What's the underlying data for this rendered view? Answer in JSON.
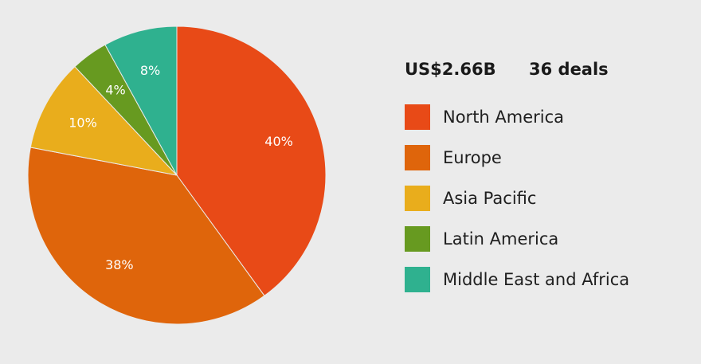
{
  "chart_data": {
    "type": "pie",
    "annotations": [
      "US$2.66B",
      "36 deals"
    ],
    "categories": [
      "North America",
      "Europe",
      "Asia Pacific",
      "Latin America",
      "Middle East and Africa"
    ],
    "values": [
      40,
      38,
      10,
      4,
      8
    ],
    "value_labels": [
      "40%",
      "38%",
      "10%",
      "4%",
      "8%"
    ],
    "colors": [
      "#e84a17",
      "#df650b",
      "#e9ad1c",
      "#679a20",
      "#2fb18f"
    ],
    "legend": "right"
  }
}
